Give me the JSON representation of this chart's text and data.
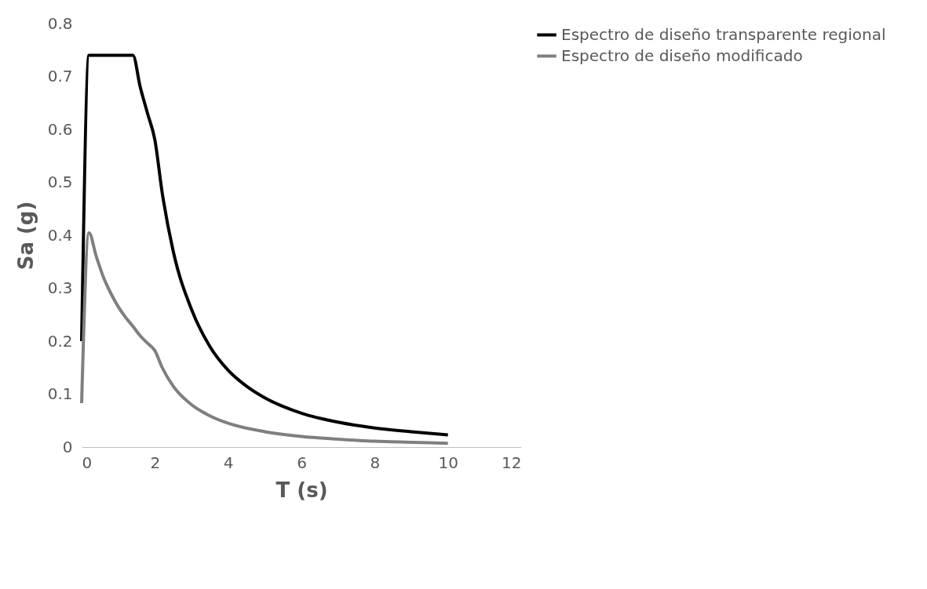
{
  "chart_data": {
    "type": "line",
    "xlabel": "T (s)",
    "ylabel": "Sa (g)",
    "xlim": [
      0,
      12
    ],
    "xticks": [
      0,
      2,
      4,
      6,
      8,
      10,
      12
    ],
    "ylim": [
      0,
      0.8
    ],
    "yticks": [
      0,
      0.1,
      0.2,
      0.3,
      0.4,
      0.5,
      0.6,
      0.7,
      0.8
    ],
    "grid": false,
    "legend": "right",
    "marker": "none",
    "line_style": "solid",
    "series": [
      {
        "name": "Espectro de diseño transparente regional",
        "color": "#000000",
        "x": [
          0,
          0.2,
          1.4,
          1.6,
          1.8,
          2.0,
          2.2,
          2.5,
          3,
          3.5,
          4,
          4.5,
          5,
          6,
          7,
          8,
          9,
          10
        ],
        "values": [
          0.2,
          0.74,
          0.74,
          0.68,
          0.63,
          0.58,
          0.48,
          0.37,
          0.26,
          0.19,
          0.145,
          0.115,
          0.093,
          0.064,
          0.047,
          0.036,
          0.029,
          0.023
        ]
      },
      {
        "name": "Espectro de diseño modificado",
        "color": "#7f7f7f",
        "x": [
          0,
          0.2,
          0.4,
          0.6,
          0.8,
          1.0,
          1.2,
          1.4,
          1.6,
          1.8,
          2.0,
          2.2,
          2.5,
          3,
          3.5,
          4,
          5,
          6,
          7,
          8,
          9,
          10
        ],
        "values": [
          0.083,
          0.405,
          0.36,
          0.32,
          0.29,
          0.265,
          0.245,
          0.228,
          0.21,
          0.196,
          0.182,
          0.15,
          0.115,
          0.08,
          0.059,
          0.045,
          0.029,
          0.02,
          0.015,
          0.011,
          0.009,
          0.007
        ]
      }
    ]
  }
}
